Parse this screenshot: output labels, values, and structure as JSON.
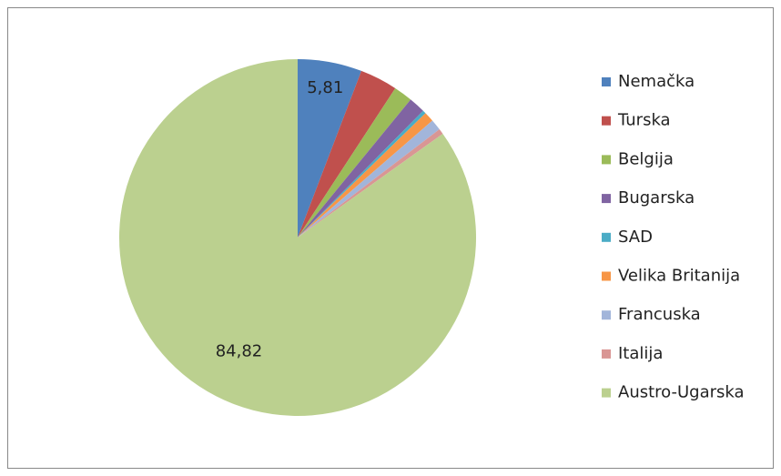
{
  "chart_data": {
    "type": "pie",
    "categories": [
      "Nemačka",
      "Turska",
      "Belgija",
      "Bugarska",
      "SAD",
      "Velika Britanija",
      "Francuska",
      "Italija",
      "Austro-Ugarska"
    ],
    "values": [
      5.81,
      3.4,
      1.7,
      1.5,
      0.3,
      0.9,
      1.0,
      0.5,
      84.82
    ],
    "value_labels": [
      "5,81",
      null,
      null,
      null,
      null,
      null,
      null,
      null,
      "84,82"
    ],
    "colors": [
      "#4F81BD",
      "#C0504D",
      "#9BBB59",
      "#8064A2",
      "#4BACC6",
      "#F79646",
      "#A2B5DA",
      "#D99694",
      "#BBD08F"
    ],
    "legend": "right"
  }
}
